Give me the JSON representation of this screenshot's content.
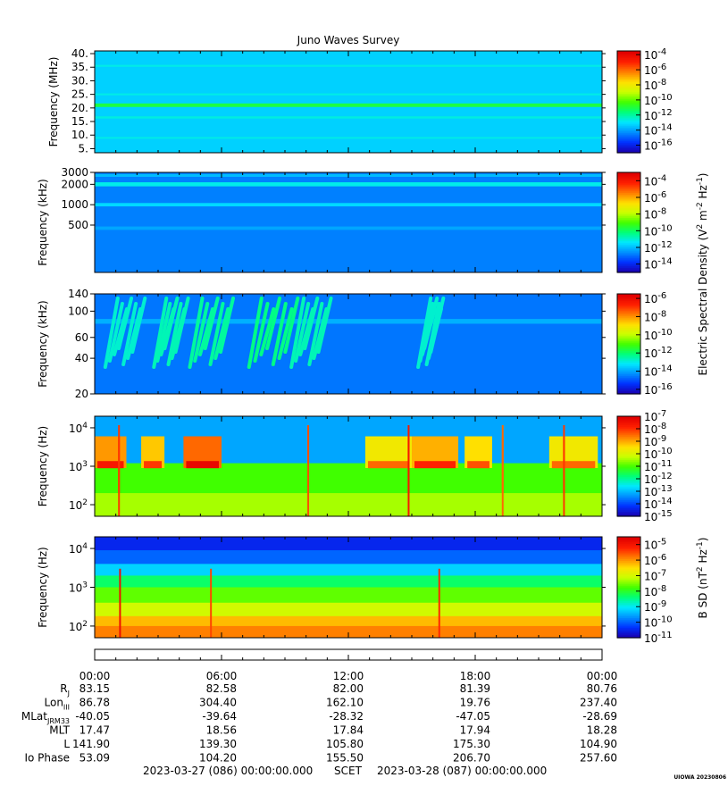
{
  "title": "Juno Waves Survey",
  "colorbar_colors": [
    "#1a00b0",
    "#0032ff",
    "#0090ff",
    "#00e8ff",
    "#00ff7a",
    "#40ff00",
    "#c8ff00",
    "#ffe000",
    "#ff8000",
    "#ff2000",
    "#e00000"
  ],
  "chart_data": [
    {
      "type": "heatmap",
      "panel": 1,
      "ylabel": "Frequency (MHz)",
      "yscale": "linear",
      "ylim": [
        3.5,
        41
      ],
      "yticks": [
        "40.",
        "35.",
        "30.",
        "25.",
        "20.",
        "15.",
        "10.",
        "5."
      ],
      "ytick_values": [
        40,
        35,
        30,
        25,
        20,
        15,
        10,
        5
      ],
      "colorbar_ticks": [
        "10-4",
        "10-6",
        "10-8",
        "10-10",
        "10-12",
        "10-14",
        "10-16"
      ],
      "colorbar_exponents": [
        -4,
        -6,
        -8,
        -10,
        -12,
        -14,
        -16
      ],
      "colorbar_range": [
        -17,
        -3.5
      ],
      "background_level": -13.3,
      "features": [
        {
          "name": "band",
          "y": 21.0,
          "level": -11.0,
          "width": 1.3
        },
        {
          "name": "band",
          "y": 16.5,
          "level": -12.6,
          "width": 0.8
        },
        {
          "name": "band",
          "y": 25.0,
          "level": -12.7,
          "width": 0.7
        },
        {
          "name": "band",
          "y": 35.5,
          "level": -12.7,
          "width": 0.7
        },
        {
          "name": "band",
          "y": 9.0,
          "level": -12.7,
          "width": 0.6
        }
      ]
    },
    {
      "type": "heatmap",
      "panel": 2,
      "ylabel": "Frequency (kHz)",
      "yscale": "log",
      "ylim": [
        100,
        3000
      ],
      "yticks": [
        "3000",
        "2000",
        "1000",
        "500"
      ],
      "ytick_values": [
        3000,
        2000,
        1000,
        500
      ],
      "colorbar_ticks": [
        "10-4",
        "10-6",
        "10-8",
        "10-10",
        "10-12",
        "10-14"
      ],
      "colorbar_exponents": [
        -4,
        -6,
        -8,
        -10,
        -12,
        -14
      ],
      "colorbar_range": [
        -15,
        -3
      ],
      "background_level": -12.8,
      "features": [
        {
          "name": "band",
          "y": 2000,
          "level": -11.2,
          "width": 0.06
        },
        {
          "name": "band",
          "y": 1000,
          "level": -11.6,
          "width": 0.05
        },
        {
          "name": "band",
          "y": 2700,
          "level": -12.0,
          "width": 0.04
        },
        {
          "name": "band",
          "y": 450,
          "level": -12.3,
          "width": 0.05
        }
      ]
    },
    {
      "type": "heatmap",
      "panel": 3,
      "ylabel": "Frequency (kHz)",
      "yscale": "log",
      "ylim": [
        20,
        140
      ],
      "yticks": [
        "140",
        "100",
        "60",
        "40",
        "20"
      ],
      "ytick_values": [
        140,
        100,
        60,
        40,
        20
      ],
      "colorbar_ticks": [
        "10-6",
        "10-8",
        "10-10",
        "10-12",
        "10-14",
        "10-16"
      ],
      "colorbar_exponents": [
        -6,
        -8,
        -10,
        -12,
        -14,
        -16
      ],
      "colorbar_range": [
        -16.5,
        -5.5
      ],
      "background_level": -14.6,
      "features": [
        {
          "name": "band",
          "y": 82,
          "level": -13.9,
          "width": 0.04
        },
        {
          "name": "burst",
          "t0": 0.5,
          "t1": 2.0,
          "level": -12.8
        },
        {
          "name": "burst",
          "t0": 2.8,
          "t1": 4.0,
          "level": -12.6
        },
        {
          "name": "burst",
          "t0": 4.5,
          "t1": 6.2,
          "level": -12.4
        },
        {
          "name": "burst",
          "t0": 7.3,
          "t1": 9.3,
          "level": -12.2
        },
        {
          "name": "burst",
          "t0": 9.3,
          "t1": 10.8,
          "level": -12.6
        },
        {
          "name": "burst",
          "t0": 15.3,
          "t1": 16.0,
          "level": -12.8
        }
      ]
    },
    {
      "type": "heatmap",
      "panel": 4,
      "ylabel": "Frequency (Hz)",
      "yscale": "log",
      "ylim": [
        50,
        20000
      ],
      "yticks": [
        "10^4",
        "10^3",
        "10^2"
      ],
      "ytick_values": [
        10000,
        1000,
        100
      ],
      "colorbar_ticks": [
        "10-7",
        "10-8",
        "10-9",
        "10-10",
        "10-11",
        "10-12",
        "10-13",
        "10-14",
        "10-15"
      ],
      "colorbar_exponents": [
        -7,
        -8,
        -9,
        -10,
        -11,
        -12,
        -13,
        -14,
        -15
      ],
      "colorbar_range": [
        -15,
        -7
      ],
      "background_level": -11.0,
      "features": [
        {
          "name": "top",
          "level": -13.2
        },
        {
          "name": "emission",
          "t0": 0.0,
          "t1": 1.5,
          "level": -8.8
        },
        {
          "name": "emission",
          "t0": 2.2,
          "t1": 3.3,
          "level": -9.2
        },
        {
          "name": "emission",
          "t0": 4.2,
          "t1": 6.0,
          "level": -8.4
        },
        {
          "name": "emission",
          "t0": 12.8,
          "t1": 15.0,
          "level": -9.6
        },
        {
          "name": "emission",
          "t0": 15.0,
          "t1": 17.2,
          "level": -9.0
        },
        {
          "name": "emission",
          "t0": 17.5,
          "t1": 18.8,
          "level": -9.4
        },
        {
          "name": "emission",
          "t0": 21.5,
          "t1": 23.8,
          "level": -9.6
        },
        {
          "name": "spike",
          "t": 1.15,
          "level": -8.0
        },
        {
          "name": "spike",
          "t": 10.1,
          "level": -8.2
        },
        {
          "name": "spike",
          "t": 14.85,
          "level": -7.6
        },
        {
          "name": "spike",
          "t": 19.3,
          "level": -8.4
        },
        {
          "name": "spike",
          "t": 22.2,
          "level": -8.0
        }
      ]
    },
    {
      "type": "heatmap",
      "panel": 5,
      "ylabel": "Frequency (Hz)",
      "yscale": "log",
      "ylim": [
        50,
        20000
      ],
      "yticks": [
        "10^4",
        "10^3",
        "10^2"
      ],
      "ytick_values": [
        10000,
        1000,
        100
      ],
      "colorbar_ticks": [
        "10-5",
        "10-6",
        "10-7",
        "10-8",
        "10-9",
        "10-10",
        "10-11"
      ],
      "colorbar_exponents": [
        -5,
        -6,
        -7,
        -8,
        -9,
        -10,
        -11
      ],
      "colorbar_range": [
        -11,
        -4.5
      ],
      "background_level": -7.3,
      "features": [
        {
          "name": "spike",
          "t": 1.2,
          "level": -4.8
        },
        {
          "name": "spike",
          "t": 5.5,
          "level": -5.4
        },
        {
          "name": "spike",
          "t": 16.3,
          "level": -5.2
        }
      ]
    }
  ],
  "colorbar_labels": [
    {
      "text": "Electric Spectral Density (V",
      "sup1": "2",
      "mid1": " m",
      "sup2": "-2",
      "mid2": " Hz",
      "sup3": "-1",
      "end": ")"
    },
    {
      "text": "B SD (nT",
      "sup1": "2",
      "mid1": " Hz",
      "sup2": "-1",
      "end": ")"
    }
  ],
  "time_axis": {
    "ticks": [
      "00:00",
      "06:00",
      "12:00",
      "18:00",
      "00:00"
    ],
    "tick_hours": [
      0,
      6,
      12,
      18,
      24
    ]
  },
  "ephemeris": {
    "rows": [
      {
        "label": "R",
        "label_sub": "J",
        "values": [
          "83.15",
          "82.58",
          "82.00",
          "81.39",
          "80.76"
        ]
      },
      {
        "label": "Lon",
        "label_sub": "III",
        "values": [
          "86.78",
          "304.40",
          "162.10",
          "19.76",
          "237.40"
        ]
      },
      {
        "label": "MLat",
        "label_sub": "JRM33",
        "values": [
          "-40.05",
          "-39.64",
          "-28.32",
          "-47.05",
          "-28.69"
        ]
      },
      {
        "label": "MLT",
        "label_sub": "",
        "values": [
          "17.47",
          "18.56",
          "17.84",
          "17.94",
          "18.28"
        ]
      },
      {
        "label": "L",
        "label_sub": "",
        "values": [
          "141.90",
          "139.30",
          "105.80",
          "175.30",
          "104.90"
        ]
      },
      {
        "label": "Io Phase",
        "label_sub": "",
        "values": [
          "53.09",
          "104.20",
          "155.50",
          "206.70",
          "257.60"
        ]
      }
    ]
  },
  "footer": {
    "start": "2023-03-27 (086) 00:00:00.000",
    "scet": "SCET",
    "end": "2023-03-28 (087) 00:00:00.000",
    "credit": "UIOWA 20230806"
  }
}
